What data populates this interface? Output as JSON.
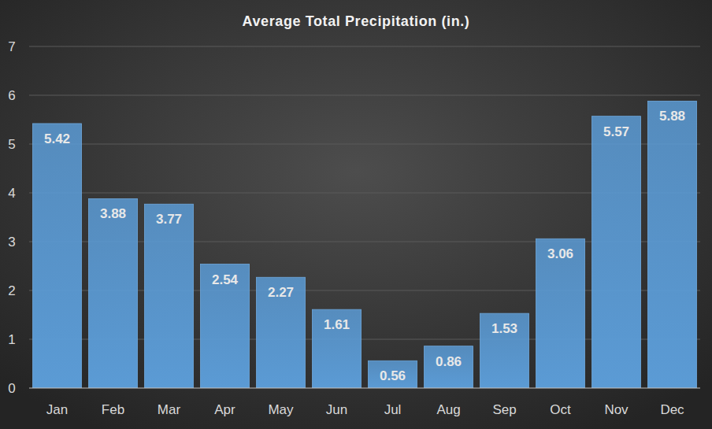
{
  "chart_data": {
    "type": "bar",
    "title": "Average Total Precipitation (in.)",
    "categories": [
      "Jan",
      "Feb",
      "Mar",
      "Apr",
      "May",
      "Jun",
      "Jul",
      "Aug",
      "Sep",
      "Oct",
      "Nov",
      "Dec"
    ],
    "values": [
      5.42,
      3.88,
      3.77,
      2.54,
      2.27,
      1.61,
      0.56,
      0.86,
      1.53,
      3.06,
      5.57,
      5.88
    ],
    "color": "#5b9bd5",
    "ylim": [
      0,
      7
    ],
    "yticks": [
      0,
      1,
      2,
      3,
      4,
      5,
      6,
      7
    ],
    "grid": true,
    "data_labels": true
  }
}
